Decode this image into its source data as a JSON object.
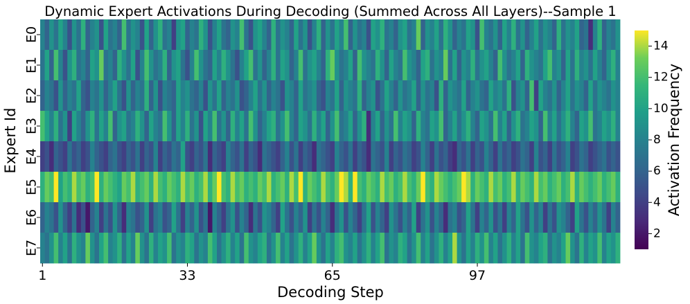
{
  "chart_data": {
    "type": "heatmap",
    "title": "Dynamic Expert Activations During Decoding (Summed Across All Layers)--Sample 1",
    "xlabel": "Decoding Step",
    "ylabel": "Expert Id",
    "x_tick_labels": [
      "1",
      "33",
      "65",
      "97"
    ],
    "x_tick_steps": [
      1,
      33,
      65,
      97
    ],
    "x_range": [
      1,
      128
    ],
    "rows": [
      "E0",
      "E1",
      "E2",
      "E3",
      "E4",
      "E5",
      "E6",
      "E7"
    ],
    "colorbar": {
      "label": "Activation Frequency",
      "ticks": [
        2,
        4,
        6,
        8,
        10,
        12,
        14
      ],
      "range": [
        1,
        15
      ],
      "colormap": "viridis"
    },
    "values": [
      [
        8,
        6,
        9,
        7,
        10,
        8,
        5,
        9,
        7,
        11,
        6,
        8,
        9,
        5,
        10,
        7,
        8,
        6,
        12,
        7,
        9,
        8,
        5,
        10,
        6,
        9,
        11,
        7,
        8,
        4,
        9,
        10,
        6,
        8,
        7,
        11,
        9,
        5,
        8,
        10,
        7,
        6,
        9,
        8,
        12,
        7,
        5,
        9,
        10,
        8,
        6,
        11,
        7,
        9,
        8,
        6,
        10,
        7,
        9,
        5,
        8,
        11,
        6,
        9,
        7,
        10,
        8,
        12,
        6,
        9,
        7,
        8,
        5,
        10,
        9,
        11,
        7,
        8,
        6,
        9,
        10,
        7,
        8,
        13,
        6,
        9,
        8,
        10,
        7,
        11,
        9,
        6,
        8,
        7,
        10,
        9,
        5,
        12,
        8,
        7,
        9,
        6,
        10,
        8,
        11,
        7,
        9,
        6,
        8,
        10,
        7,
        9,
        8,
        6,
        11,
        7,
        9,
        8,
        10,
        6,
        7,
        3,
        8,
        11,
        6,
        8,
        7,
        9
      ],
      [
        7,
        10,
        6,
        12,
        8,
        5,
        9,
        11,
        7,
        8,
        6,
        10,
        9,
        13,
        7,
        8,
        6,
        11,
        9,
        7,
        10,
        5,
        8,
        12,
        9,
        7,
        8,
        11,
        6,
        9,
        10,
        7,
        5,
        8,
        12,
        9,
        7,
        6,
        10,
        8,
        11,
        9,
        7,
        5,
        8,
        10,
        12,
        7,
        9,
        6,
        8,
        11,
        7,
        10,
        9,
        6,
        8,
        12,
        7,
        9,
        10,
        8,
        6,
        11,
        13,
        9,
        7,
        8,
        10,
        6,
        12,
        9,
        8,
        7,
        11,
        9,
        6,
        10,
        8,
        7,
        12,
        9,
        8,
        6,
        10,
        11,
        7,
        9,
        8,
        13,
        7,
        10,
        6,
        9,
        8,
        11,
        7,
        9,
        10,
        8,
        6,
        12,
        9,
        7,
        8,
        10,
        6,
        11,
        9,
        8,
        7,
        10,
        12,
        8,
        9,
        6,
        10,
        7,
        11,
        8,
        9,
        7,
        10,
        8,
        6,
        9,
        11,
        8
      ],
      [
        6,
        8,
        7,
        5,
        9,
        6,
        8,
        7,
        10,
        6,
        5,
        8,
        7,
        9,
        6,
        8,
        10,
        7,
        5,
        9,
        6,
        8,
        7,
        11,
        6,
        9,
        5,
        8,
        7,
        6,
        10,
        8,
        9,
        7,
        6,
        8,
        5,
        9,
        7,
        10,
        6,
        8,
        7,
        9,
        5,
        6,
        8,
        10,
        7,
        9,
        6,
        8,
        7,
        5,
        9,
        8,
        6,
        10,
        7,
        8,
        9,
        6,
        5,
        8,
        7,
        10,
        6,
        9,
        8,
        7,
        11,
        6,
        8,
        9,
        5,
        7,
        10,
        8,
        6,
        9,
        7,
        8,
        10,
        6,
        9,
        7,
        8,
        5,
        11,
        6,
        9,
        8,
        7,
        10,
        6,
        8,
        9,
        7,
        6,
        10,
        8,
        9,
        7,
        11,
        5,
        8,
        9,
        6,
        12,
        4,
        10,
        8,
        7,
        9,
        6,
        8,
        10,
        7,
        9,
        8,
        6,
        10,
        7,
        9,
        8,
        7,
        9,
        8
      ],
      [
        12,
        10,
        8,
        11,
        7,
        9,
        4,
        10,
        8,
        6,
        9,
        11,
        7,
        10,
        8,
        12,
        6,
        9,
        10,
        7,
        8,
        11,
        9,
        6,
        10,
        8,
        7,
        12,
        9,
        6,
        10,
        8,
        11,
        7,
        9,
        5,
        10,
        8,
        12,
        7,
        9,
        6,
        11,
        8,
        10,
        7,
        12,
        9,
        6,
        8,
        10,
        11,
        7,
        9,
        12,
        8,
        6,
        10,
        9,
        7,
        11,
        8,
        10,
        6,
        9,
        12,
        7,
        8,
        10,
        6,
        9,
        11,
        3,
        8,
        10,
        6,
        9,
        7,
        12,
        8,
        10,
        9,
        6,
        11,
        8,
        7,
        10,
        9,
        12,
        6,
        8,
        10,
        7,
        9,
        11,
        8,
        6,
        10,
        9,
        7,
        12,
        8,
        10,
        6,
        9,
        11,
        7,
        8,
        10,
        9,
        6,
        12,
        8,
        10,
        7,
        9,
        11,
        8,
        6,
        10,
        9,
        12,
        7,
        8,
        10,
        9,
        11,
        8
      ],
      [
        4,
        5,
        3,
        6,
        5,
        4,
        7,
        5,
        6,
        4,
        5,
        8,
        6,
        5,
        4,
        6,
        7,
        5,
        4,
        6,
        5,
        7,
        4,
        6,
        5,
        8,
        4,
        6,
        5,
        7,
        6,
        10,
        5,
        4,
        6,
        5,
        7,
        3,
        6,
        5,
        4,
        8,
        6,
        5,
        7,
        4,
        6,
        5,
        3,
        7,
        6,
        5,
        4,
        6,
        8,
        5,
        7,
        4,
        6,
        5,
        3,
        7,
        6,
        5,
        4,
        8,
        6,
        5,
        7,
        4,
        6,
        5,
        3,
        7,
        6,
        5,
        8,
        4,
        6,
        5,
        7,
        6,
        4,
        5,
        8,
        6,
        4,
        7,
        5,
        6,
        4,
        3,
        6,
        5,
        7,
        4,
        6,
        5,
        8,
        6,
        4,
        7,
        5,
        6,
        4,
        5,
        7,
        6,
        4,
        8,
        5,
        6,
        4,
        7,
        5,
        6,
        8,
        4,
        5,
        7,
        6,
        4,
        5,
        6,
        7,
        5,
        6,
        5
      ],
      [
        11,
        13,
        12,
        15,
        10,
        12,
        11,
        14,
        12,
        13,
        11,
        12,
        15,
        11,
        13,
        12,
        11,
        10,
        13,
        12,
        14,
        11,
        12,
        13,
        11,
        14,
        12,
        11,
        13,
        12,
        11,
        14,
        12,
        13,
        11,
        12,
        14,
        11,
        13,
        15,
        12,
        11,
        14,
        12,
        13,
        11,
        12,
        11,
        13,
        12,
        14,
        11,
        12,
        13,
        11,
        14,
        12,
        15,
        11,
        13,
        12,
        11,
        14,
        12,
        11,
        13,
        15,
        14,
        11,
        15,
        12,
        11,
        13,
        12,
        11,
        14,
        12,
        13,
        11,
        12,
        14,
        12,
        11,
        13,
        15,
        12,
        11,
        14,
        13,
        12,
        11,
        12,
        13,
        15,
        14,
        11,
        13,
        12,
        11,
        14,
        12,
        13,
        11,
        12,
        14,
        11,
        13,
        12,
        11,
        14,
        12,
        13,
        11,
        12,
        13,
        11,
        12,
        14,
        11,
        13,
        12,
        11,
        12,
        13,
        11,
        12,
        13,
        11
      ],
      [
        6,
        8,
        7,
        5,
        9,
        6,
        4,
        7,
        3,
        5,
        2,
        6,
        8,
        4,
        7,
        5,
        9,
        6,
        3,
        8,
        7,
        5,
        6,
        9,
        4,
        7,
        8,
        5,
        6,
        10,
        7,
        4,
        8,
        6,
        9,
        5,
        7,
        2,
        8,
        6,
        4,
        7,
        9,
        5,
        8,
        6,
        3,
        7,
        5,
        9,
        8,
        6,
        4,
        10,
        7,
        5,
        8,
        6,
        9,
        4,
        7,
        5,
        8,
        6,
        3,
        7,
        9,
        5,
        8,
        6,
        4,
        7,
        10,
        5,
        8,
        6,
        4,
        9,
        7,
        5,
        8,
        6,
        10,
        4,
        7,
        9,
        5,
        8,
        6,
        3,
        7,
        8,
        5,
        6,
        10,
        7,
        4,
        8,
        6,
        9,
        5,
        7,
        4,
        8,
        6,
        10,
        7,
        5,
        9,
        6,
        8,
        4,
        7,
        5,
        9,
        8,
        6,
        4,
        10,
        7,
        5,
        8,
        6,
        9,
        7,
        4,
        8,
        6
      ],
      [
        8,
        7,
        9,
        12,
        8,
        10,
        7,
        11,
        9,
        8,
        13,
        9,
        7,
        10,
        12,
        8,
        9,
        11,
        7,
        10,
        8,
        13,
        9,
        7,
        11,
        8,
        10,
        9,
        12,
        7,
        9,
        8,
        11,
        10,
        7,
        9,
        8,
        12,
        10,
        7,
        9,
        11,
        8,
        10,
        7,
        12,
        9,
        8,
        10,
        11,
        7,
        9,
        12,
        8,
        10,
        7,
        9,
        11,
        8,
        10,
        13,
        9,
        7,
        10,
        8,
        11,
        12,
        9,
        8,
        10,
        7,
        9,
        11,
        8,
        10,
        12,
        7,
        9,
        8,
        11,
        10,
        7,
        9,
        12,
        8,
        10,
        7,
        9,
        11,
        8,
        10,
        14,
        9,
        7,
        10,
        8,
        11,
        9,
        12,
        8,
        10,
        7,
        9,
        11,
        8,
        10,
        7,
        12,
        9,
        8,
        10,
        11,
        7,
        9,
        8,
        10,
        13,
        9,
        7,
        11,
        8,
        10,
        9,
        12,
        8,
        10,
        9,
        11
      ]
    ]
  }
}
